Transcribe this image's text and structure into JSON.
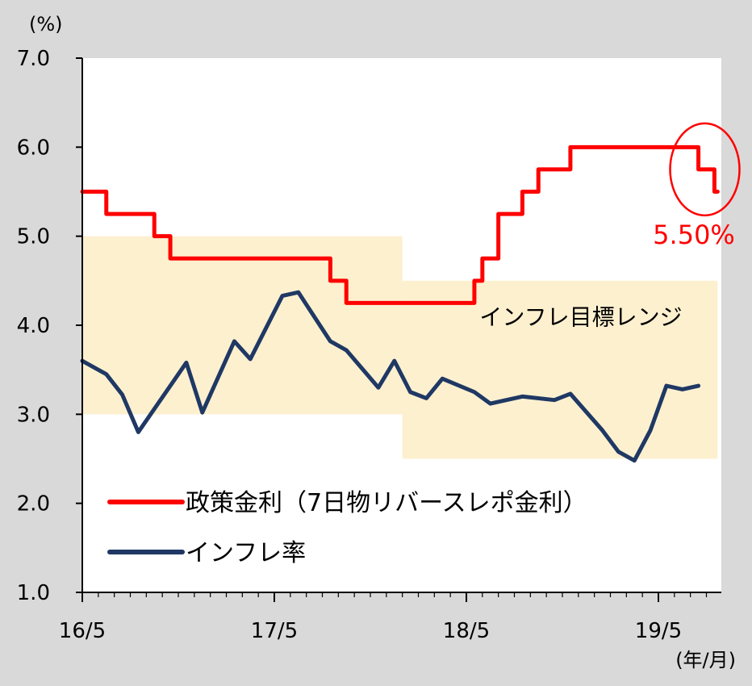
{
  "chart_data": {
    "type": "line",
    "y_unit": "(%)",
    "x_unit": "(年/月)",
    "ylim": [
      1.0,
      7.0
    ],
    "y_ticks": [
      "7.0",
      "6.0",
      "5.0",
      "4.0",
      "3.0",
      "2.0",
      "1.0"
    ],
    "x_ticks": [
      {
        "label": "16/5",
        "t": 0
      },
      {
        "label": "17/5",
        "t": 12
      },
      {
        "label": "18/5",
        "t": 24
      },
      {
        "label": "19/5",
        "t": 36
      }
    ],
    "xlim": [
      0,
      40
    ],
    "target_range": {
      "label": "インフレ目標レンジ",
      "segments": [
        {
          "t_start": 0,
          "t_end": 20,
          "low": 3.0,
          "high": 5.0
        },
        {
          "t_start": 20,
          "t_end": 40,
          "low": 2.5,
          "high": 4.5
        }
      ]
    },
    "series": [
      {
        "name": "政策金利（7日物リバースレポ金利）",
        "color": "#ff0000",
        "step": true,
        "points": [
          [
            0,
            5.5
          ],
          [
            1.5,
            5.25
          ],
          [
            4.5,
            5.0
          ],
          [
            5.5,
            4.75
          ],
          [
            15.5,
            4.5
          ],
          [
            16.5,
            4.25
          ],
          [
            24.5,
            4.5
          ],
          [
            25,
            4.75
          ],
          [
            26,
            5.25
          ],
          [
            27.5,
            5.5
          ],
          [
            28.5,
            5.75
          ],
          [
            30.5,
            6.0
          ],
          [
            38.5,
            5.75
          ],
          [
            39.5,
            5.5
          ],
          [
            39.7,
            5.5
          ]
        ]
      },
      {
        "name": "インフレ率",
        "color": "#1f3864",
        "step": false,
        "points": [
          [
            0,
            3.6
          ],
          [
            1.5,
            3.45
          ],
          [
            2.5,
            3.22
          ],
          [
            3.5,
            2.8
          ],
          [
            6.5,
            3.58
          ],
          [
            7.5,
            3.02
          ],
          [
            9.5,
            3.82
          ],
          [
            10.5,
            3.62
          ],
          [
            12.5,
            4.33
          ],
          [
            13.5,
            4.37
          ],
          [
            15.5,
            3.82
          ],
          [
            16.5,
            3.72
          ],
          [
            18.5,
            3.3
          ],
          [
            19.5,
            3.6
          ],
          [
            20.5,
            3.25
          ],
          [
            21.5,
            3.18
          ],
          [
            22.5,
            3.4
          ],
          [
            24.5,
            3.25
          ],
          [
            25.5,
            3.12
          ],
          [
            27.5,
            3.2
          ],
          [
            29.5,
            3.16
          ],
          [
            30.5,
            3.23
          ],
          [
            32.5,
            2.82
          ],
          [
            33.5,
            2.58
          ],
          [
            34.5,
            2.48
          ],
          [
            35.5,
            2.82
          ],
          [
            36.5,
            3.32
          ],
          [
            37.5,
            3.28
          ],
          [
            38.5,
            3.32
          ]
        ]
      }
    ],
    "annotation": {
      "text": "5.50%",
      "color": "#ff0000",
      "t": 38.9,
      "y": 5.75
    }
  }
}
